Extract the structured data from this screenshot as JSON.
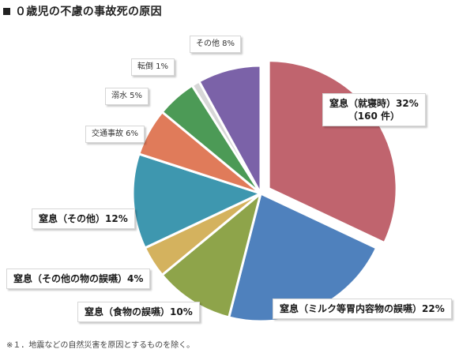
{
  "page": {
    "title": "０歳児の不慮の事故死の原因"
  },
  "footnote": "※１．地震などの自然災害を原因とするものを除く。",
  "chart_data": {
    "type": "pie",
    "title": "０歳児の不慮の事故死の原因",
    "slices": [
      {
        "label": "窒息（就寝時）32%",
        "sublabel": "（160 件）",
        "value": 32,
        "color": "#C0646E",
        "exploded": true
      },
      {
        "label": "窒息（ミルク等胃内容物の誤嚥）22%",
        "value": 22,
        "color": "#4F81BD"
      },
      {
        "label": "窒息（食物の誤嚥）10%",
        "value": 10,
        "color": "#8EA44A"
      },
      {
        "label": "窒息（その他の物の誤嚥）4%",
        "value": 4,
        "color": "#D4B25E"
      },
      {
        "label": "窒息（その他）12%",
        "value": 12,
        "color": "#3E97AF"
      },
      {
        "label": "交通事故 6%",
        "value": 6,
        "color": "#E07B5A"
      },
      {
        "label": "溺水 5%",
        "value": 5,
        "color": "#4C9A56"
      },
      {
        "label": "転倒 1%",
        "value": 1,
        "color": "#D7D7D7"
      },
      {
        "label": "その他 8%",
        "value": 8,
        "color": "#7B62A8"
      }
    ]
  }
}
